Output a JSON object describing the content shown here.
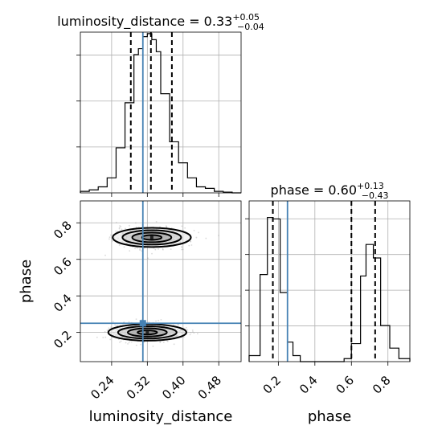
{
  "chart_data": {
    "type": "corner",
    "parameters": [
      "luminosity_distance",
      "phase"
    ],
    "truths": {
      "luminosity_distance": 0.31,
      "phase": 0.25
    },
    "panels": [
      {
        "id": "hist-luminosity_distance",
        "type": "histogram",
        "parameter": "luminosity_distance",
        "title": {
          "main": "luminosity_distance = 0.33",
          "plus": "+0.05",
          "minus": "−0.04"
        },
        "xlim": [
          0.17,
          0.53
        ],
        "ylim": [
          0,
          1.07
        ],
        "bin_edges": [
          0.17,
          0.19,
          0.21,
          0.23,
          0.25,
          0.27,
          0.29,
          0.3,
          0.31,
          0.32,
          0.33,
          0.34,
          0.35,
          0.37,
          0.39,
          0.41,
          0.43,
          0.45,
          0.47,
          0.49,
          0.51,
          0.53
        ],
        "counts": [
          0.01,
          0.02,
          0.04,
          0.1,
          0.3,
          0.6,
          0.92,
          0.96,
          1.04,
          1.06,
          1.02,
          0.94,
          0.66,
          0.34,
          0.2,
          0.1,
          0.04,
          0.03,
          0.01,
          0.005,
          0.0
        ],
        "quantiles": [
          0.283,
          0.328,
          0.375
        ],
        "truth": 0.31,
        "xticks": [],
        "yticks_count": 3
      },
      {
        "id": "hist-phase",
        "type": "histogram",
        "parameter": "phase",
        "title": {
          "main": "phase = 0.60",
          "plus": "+0.13",
          "minus": "−0.43"
        },
        "xlim": [
          0.04,
          0.92
        ],
        "ylim": [
          0,
          1.07
        ],
        "bin_edges": [
          0.04,
          0.1,
          0.14,
          0.17,
          0.21,
          0.25,
          0.28,
          0.32,
          0.36,
          0.4,
          0.44,
          0.48,
          0.52,
          0.56,
          0.6,
          0.65,
          0.68,
          0.72,
          0.76,
          0.81,
          0.86,
          0.92
        ],
        "counts": [
          0.04,
          0.58,
          0.96,
          0.95,
          0.46,
          0.13,
          0.04,
          0.0,
          0.0,
          0.0,
          0.0,
          0.0,
          0.0,
          0.02,
          0.12,
          0.57,
          0.78,
          0.69,
          0.24,
          0.09,
          0.02
        ],
        "quantiles": [
          0.17,
          0.6,
          0.73
        ],
        "truth": 0.25,
        "xticks": [
          "0.2",
          "0.4",
          "0.6",
          "0.8"
        ],
        "xtick_values": [
          0.2,
          0.4,
          0.6,
          0.8
        ],
        "yticks_count": 4,
        "xlabel": "phase"
      },
      {
        "id": "2d-phase-vs-luminosity_distance",
        "type": "2d-density",
        "x_parameter": "luminosity_distance",
        "y_parameter": "phase",
        "xlim": [
          0.17,
          0.53
        ],
        "ylim": [
          0.04,
          0.92
        ],
        "xticks": [
          "0.24",
          "0.32",
          "0.40",
          "0.48"
        ],
        "xtick_values": [
          0.24,
          0.32,
          0.4,
          0.48
        ],
        "yticks": [
          "0.2",
          "0.4",
          "0.6",
          "0.8"
        ],
        "ytick_values": [
          0.2,
          0.4,
          0.6,
          0.8
        ],
        "xlabel": "luminosity_distance",
        "ylabel": "phase",
        "truth": [
          0.31,
          0.25
        ],
        "modes": [
          {
            "center": [
              0.33,
              0.72
            ],
            "sigma": [
              0.035,
              0.035
            ],
            "contour_levels_sigma": [
              0.5,
              1.0,
              1.5,
              2.0
            ]
          },
          {
            "center": [
              0.32,
              0.2
            ],
            "sigma": [
              0.035,
              0.03
            ],
            "contour_levels_sigma": [
              0.5,
              1.0,
              1.5,
              2.0
            ]
          }
        ]
      }
    ]
  }
}
